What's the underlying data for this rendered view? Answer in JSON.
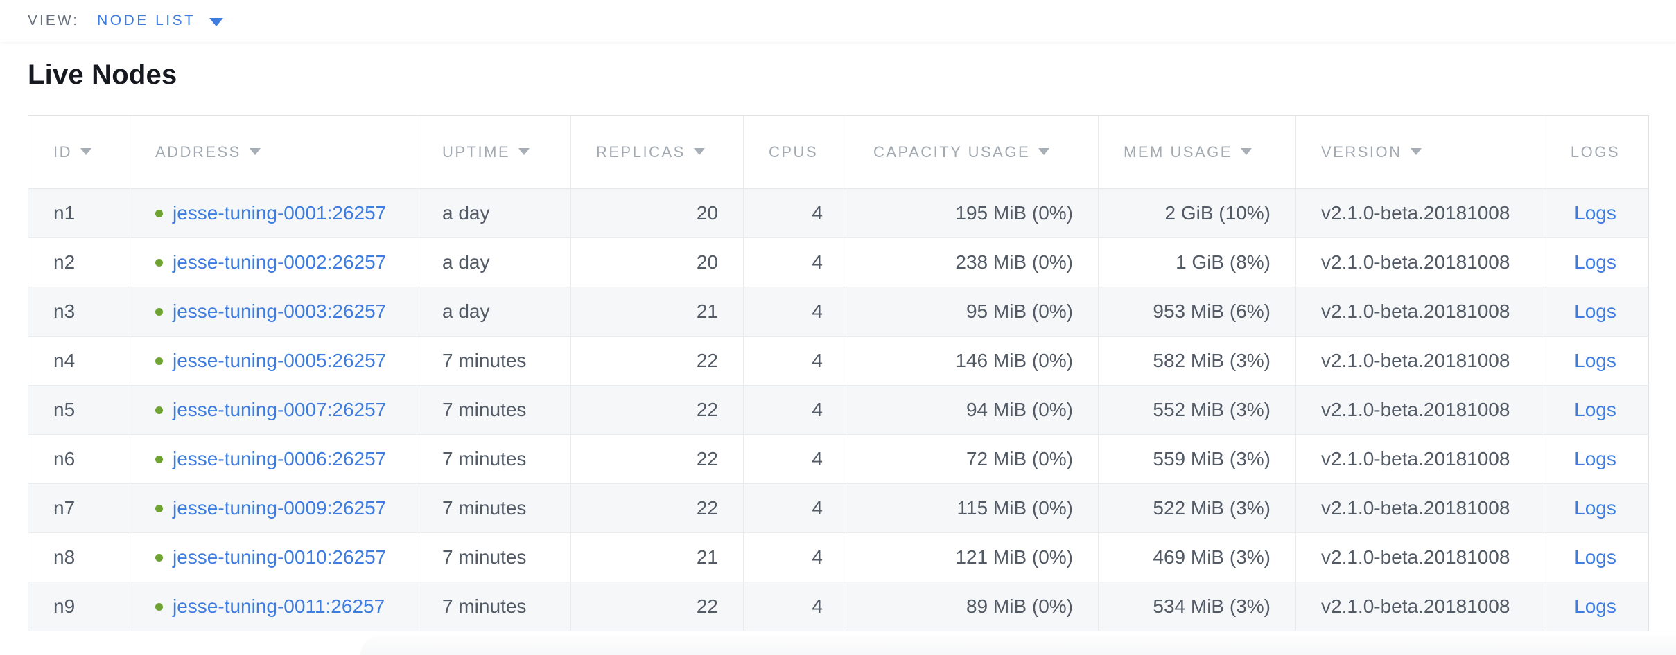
{
  "view_bar": {
    "label": "VIEW:",
    "selected": "NODE LIST"
  },
  "page": {
    "title": "Live Nodes"
  },
  "table": {
    "logs_label": "Logs",
    "columns": [
      {
        "key": "id",
        "label": "ID",
        "sortable": true
      },
      {
        "key": "address",
        "label": "ADDRESS",
        "sortable": true
      },
      {
        "key": "uptime",
        "label": "UPTIME",
        "sortable": true
      },
      {
        "key": "replicas",
        "label": "REPLICAS",
        "sortable": true
      },
      {
        "key": "cpus",
        "label": "CPUS",
        "sortable": false
      },
      {
        "key": "capacity",
        "label": "CAPACITY USAGE",
        "sortable": true
      },
      {
        "key": "mem",
        "label": "MEM USAGE",
        "sortable": true
      },
      {
        "key": "version",
        "label": "VERSION",
        "sortable": true
      },
      {
        "key": "logs",
        "label": "LOGS",
        "sortable": false
      }
    ],
    "rows": [
      {
        "id": "n1",
        "status": "live",
        "address": "jesse-tuning-0001:26257",
        "uptime": "a day",
        "replicas": "20",
        "cpus": "4",
        "capacity": "195 MiB (0%)",
        "mem": "2 GiB (10%)",
        "version": "v2.1.0-beta.20181008"
      },
      {
        "id": "n2",
        "status": "live",
        "address": "jesse-tuning-0002:26257",
        "uptime": "a day",
        "replicas": "20",
        "cpus": "4",
        "capacity": "238 MiB (0%)",
        "mem": "1 GiB (8%)",
        "version": "v2.1.0-beta.20181008"
      },
      {
        "id": "n3",
        "status": "live",
        "address": "jesse-tuning-0003:26257",
        "uptime": "a day",
        "replicas": "21",
        "cpus": "4",
        "capacity": "95 MiB (0%)",
        "mem": "953 MiB (6%)",
        "version": "v2.1.0-beta.20181008"
      },
      {
        "id": "n4",
        "status": "live",
        "address": "jesse-tuning-0005:26257",
        "uptime": "7 minutes",
        "replicas": "22",
        "cpus": "4",
        "capacity": "146 MiB (0%)",
        "mem": "582 MiB (3%)",
        "version": "v2.1.0-beta.20181008"
      },
      {
        "id": "n5",
        "status": "live",
        "address": "jesse-tuning-0007:26257",
        "uptime": "7 minutes",
        "replicas": "22",
        "cpus": "4",
        "capacity": "94 MiB (0%)",
        "mem": "552 MiB (3%)",
        "version": "v2.1.0-beta.20181008"
      },
      {
        "id": "n6",
        "status": "live",
        "address": "jesse-tuning-0006:26257",
        "uptime": "7 minutes",
        "replicas": "22",
        "cpus": "4",
        "capacity": "72 MiB (0%)",
        "mem": "559 MiB (3%)",
        "version": "v2.1.0-beta.20181008"
      },
      {
        "id": "n7",
        "status": "live",
        "address": "jesse-tuning-0009:26257",
        "uptime": "7 minutes",
        "replicas": "22",
        "cpus": "4",
        "capacity": "115 MiB (0%)",
        "mem": "522 MiB (3%)",
        "version": "v2.1.0-beta.20181008"
      },
      {
        "id": "n8",
        "status": "live",
        "address": "jesse-tuning-0010:26257",
        "uptime": "7 minutes",
        "replicas": "21",
        "cpus": "4",
        "capacity": "121 MiB (0%)",
        "mem": "469 MiB (3%)",
        "version": "v2.1.0-beta.20181008"
      },
      {
        "id": "n9",
        "status": "live",
        "address": "jesse-tuning-0011:26257",
        "uptime": "7 minutes",
        "replicas": "22",
        "cpus": "4",
        "capacity": "89 MiB (0%)",
        "mem": "534 MiB (3%)",
        "version": "v2.1.0-beta.20181008"
      }
    ]
  },
  "colors": {
    "link_blue": "#3e7ce0",
    "status_live_green": "#6fa331",
    "header_gray": "#a2a9b0",
    "cell_text": "#525a66",
    "alt_row_bg": "#f6f7f8",
    "border": "#e8eaec"
  }
}
